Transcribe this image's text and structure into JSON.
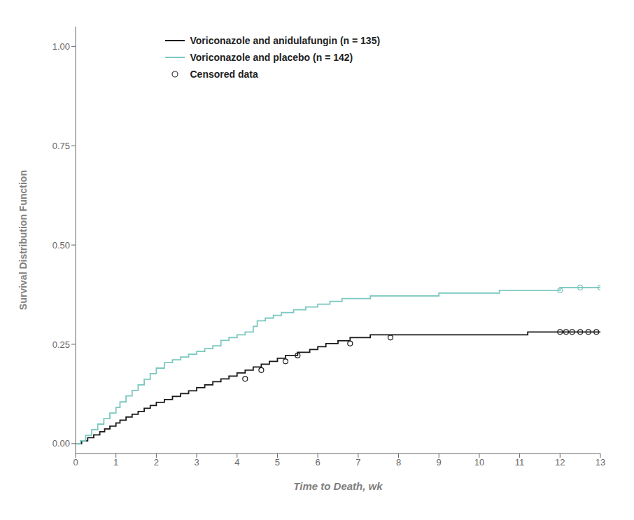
{
  "chart_data": {
    "type": "line",
    "xlabel": "Time to Death, wk",
    "ylabel": "Survival Distribution Function",
    "xlim": [
      0,
      13
    ],
    "ylim": [
      -0.025,
      1.05
    ],
    "xticks": [
      0,
      1,
      2,
      3,
      4,
      5,
      6,
      7,
      8,
      9,
      10,
      11,
      12,
      13
    ],
    "yticks": [
      {
        "value": 0.0,
        "label": "0.00"
      },
      {
        "value": 0.25,
        "label": "0.25"
      },
      {
        "value": 0.5,
        "label": "0.50"
      },
      {
        "value": 0.75,
        "label": "0.75"
      },
      {
        "value": 1.0,
        "label": "1.00"
      }
    ],
    "grid": false,
    "legend": "upper left",
    "series": [
      {
        "name": "Voriconazole and anidulafungin (n = 135)",
        "type": "line",
        "color": "#1a1a1a",
        "x": [
          0.0,
          0.15,
          0.15,
          0.3,
          0.3,
          0.45,
          0.45,
          0.6,
          0.6,
          0.72,
          0.72,
          0.85,
          0.85,
          1.0,
          1.0,
          1.1,
          1.1,
          1.25,
          1.25,
          1.4,
          1.4,
          1.55,
          1.55,
          1.7,
          1.7,
          1.85,
          1.85,
          2.0,
          2.0,
          2.2,
          2.2,
          2.4,
          2.4,
          2.6,
          2.6,
          2.8,
          2.8,
          3.0,
          3.0,
          3.2,
          3.2,
          3.4,
          3.4,
          3.6,
          3.6,
          3.8,
          3.8,
          4.0,
          4.0,
          4.2,
          4.2,
          4.4,
          4.4,
          4.6,
          4.6,
          4.8,
          4.8,
          5.0,
          5.0,
          5.2,
          5.2,
          5.5,
          5.5,
          5.8,
          5.8,
          6.0,
          6.0,
          6.2,
          6.2,
          6.5,
          6.5,
          6.8,
          6.8,
          7.0,
          7.0,
          7.3,
          7.3,
          7.8,
          7.8,
          8.5,
          8.5,
          9.5,
          9.5,
          10.5,
          10.5,
          11.2,
          11.2,
          12.0,
          12.0,
          13.0
        ],
        "values": [
          0.0,
          0.0,
          0.007,
          0.007,
          0.015,
          0.015,
          0.022,
          0.022,
          0.03,
          0.03,
          0.037,
          0.037,
          0.044,
          0.044,
          0.052,
          0.052,
          0.059,
          0.059,
          0.067,
          0.067,
          0.074,
          0.074,
          0.081,
          0.081,
          0.089,
          0.089,
          0.096,
          0.096,
          0.104,
          0.104,
          0.111,
          0.111,
          0.119,
          0.119,
          0.126,
          0.126,
          0.133,
          0.133,
          0.141,
          0.141,
          0.148,
          0.148,
          0.156,
          0.156,
          0.163,
          0.163,
          0.17,
          0.17,
          0.178,
          0.178,
          0.185,
          0.185,
          0.193,
          0.193,
          0.2,
          0.2,
          0.207,
          0.207,
          0.215,
          0.215,
          0.222,
          0.222,
          0.23,
          0.23,
          0.237,
          0.237,
          0.244,
          0.244,
          0.252,
          0.252,
          0.259,
          0.259,
          0.267,
          0.267,
          0.267,
          0.267,
          0.274,
          0.274,
          0.274,
          0.274,
          0.274,
          0.274,
          0.274,
          0.274,
          0.274,
          0.274,
          0.281,
          0.281,
          0.281,
          0.281
        ]
      },
      {
        "name": "Voriconazole and placebo (n = 142)",
        "type": "line",
        "color": "#7bc8c0",
        "x": [
          0.0,
          0.12,
          0.12,
          0.25,
          0.25,
          0.4,
          0.4,
          0.55,
          0.55,
          0.7,
          0.7,
          0.85,
          0.85,
          1.0,
          1.0,
          1.1,
          1.1,
          1.25,
          1.25,
          1.4,
          1.4,
          1.55,
          1.55,
          1.7,
          1.7,
          1.85,
          1.85,
          2.0,
          2.0,
          2.2,
          2.2,
          2.4,
          2.4,
          2.6,
          2.6,
          2.8,
          2.8,
          3.0,
          3.0,
          3.2,
          3.2,
          3.4,
          3.4,
          3.6,
          3.6,
          3.8,
          3.8,
          4.0,
          4.0,
          4.2,
          4.2,
          4.4,
          4.4,
          4.5,
          4.5,
          4.7,
          4.7,
          4.9,
          4.9,
          5.1,
          5.1,
          5.4,
          5.4,
          5.7,
          5.7,
          6.0,
          6.0,
          6.3,
          6.3,
          6.6,
          6.6,
          6.9,
          6.9,
          7.3,
          7.3,
          8.0,
          8.0,
          9.0,
          9.0,
          9.8,
          9.8,
          10.5,
          10.5,
          11.0,
          11.0,
          11.5,
          11.5,
          12.0,
          12.0,
          13.0
        ],
        "values": [
          0.0,
          0.0,
          0.007,
          0.007,
          0.021,
          0.021,
          0.035,
          0.035,
          0.049,
          0.049,
          0.063,
          0.063,
          0.077,
          0.077,
          0.091,
          0.091,
          0.105,
          0.105,
          0.12,
          0.12,
          0.134,
          0.134,
          0.148,
          0.148,
          0.162,
          0.162,
          0.176,
          0.176,
          0.19,
          0.19,
          0.204,
          0.204,
          0.211,
          0.211,
          0.218,
          0.218,
          0.225,
          0.225,
          0.232,
          0.232,
          0.239,
          0.239,
          0.246,
          0.246,
          0.26,
          0.26,
          0.267,
          0.267,
          0.274,
          0.274,
          0.281,
          0.281,
          0.295,
          0.295,
          0.309,
          0.309,
          0.316,
          0.316,
          0.323,
          0.323,
          0.33,
          0.33,
          0.337,
          0.337,
          0.344,
          0.344,
          0.351,
          0.351,
          0.358,
          0.358,
          0.365,
          0.365,
          0.365,
          0.365,
          0.372,
          0.372,
          0.372,
          0.372,
          0.379,
          0.379,
          0.379,
          0.379,
          0.386,
          0.386,
          0.386,
          0.386,
          0.386,
          0.386,
          0.393,
          0.393
        ]
      },
      {
        "name": "Censored data",
        "type": "scatter",
        "marker": "o",
        "x": [
          4.2,
          4.6,
          5.2,
          5.5,
          6.8,
          7.8,
          12.0,
          12.15,
          12.3,
          12.5,
          12.7,
          12.9,
          12.0,
          12.5,
          13.0
        ],
        "values": [
          0.163,
          0.185,
          0.207,
          0.222,
          0.252,
          0.267,
          0.281,
          0.281,
          0.281,
          0.281,
          0.281,
          0.281,
          0.386,
          0.393,
          0.393
        ],
        "colors": [
          "#1a1a1a",
          "#1a1a1a",
          "#1a1a1a",
          "#1a1a1a",
          "#1a1a1a",
          "#1a1a1a",
          "#1a1a1a",
          "#1a1a1a",
          "#1a1a1a",
          "#1a1a1a",
          "#1a1a1a",
          "#1a1a1a",
          "#7bc8c0",
          "#7bc8c0",
          "#7bc8c0"
        ]
      }
    ]
  }
}
